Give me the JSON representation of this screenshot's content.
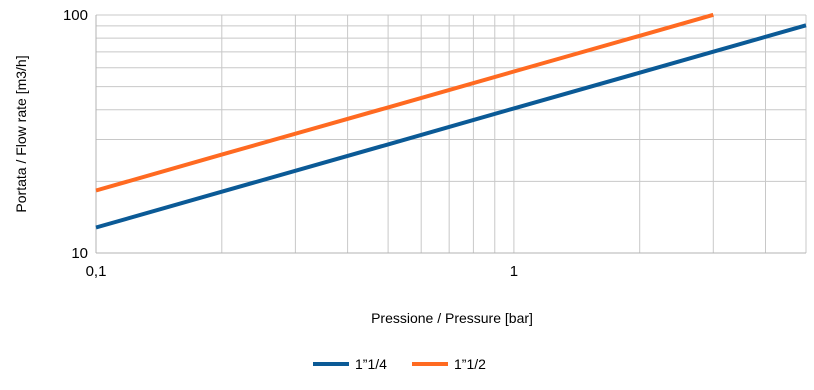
{
  "chart_data": {
    "type": "line",
    "title": "",
    "xlabel": "Pressione / Pressure [bar]",
    "ylabel": "Portata / Flow rate [m3/h]",
    "xscale": "log",
    "yscale": "log",
    "xlim": [
      0.1,
      5
    ],
    "ylim": [
      10,
      100
    ],
    "x_tick_labels": [
      "0,1",
      "1"
    ],
    "y_tick_labels": [
      "10",
      "100"
    ],
    "grid": true,
    "legend": "bottom-center",
    "series": [
      {
        "name": "1”1/4",
        "color": "#0b5a96",
        "points": [
          [
            0.1,
            12.8
          ],
          [
            0.2,
            18.1
          ],
          [
            0.5,
            28.6
          ],
          [
            1,
            40.5
          ],
          [
            2,
            57.2
          ],
          [
            3,
            70.1
          ],
          [
            5,
            90.5
          ]
        ]
      },
      {
        "name": "1”1/2",
        "color": "#ff6a21",
        "points": [
          [
            0.1,
            18.3
          ],
          [
            0.2,
            25.9
          ],
          [
            0.5,
            40.9
          ],
          [
            1,
            57.9
          ],
          [
            2,
            81.8
          ],
          [
            3,
            100.2
          ]
        ]
      }
    ]
  }
}
